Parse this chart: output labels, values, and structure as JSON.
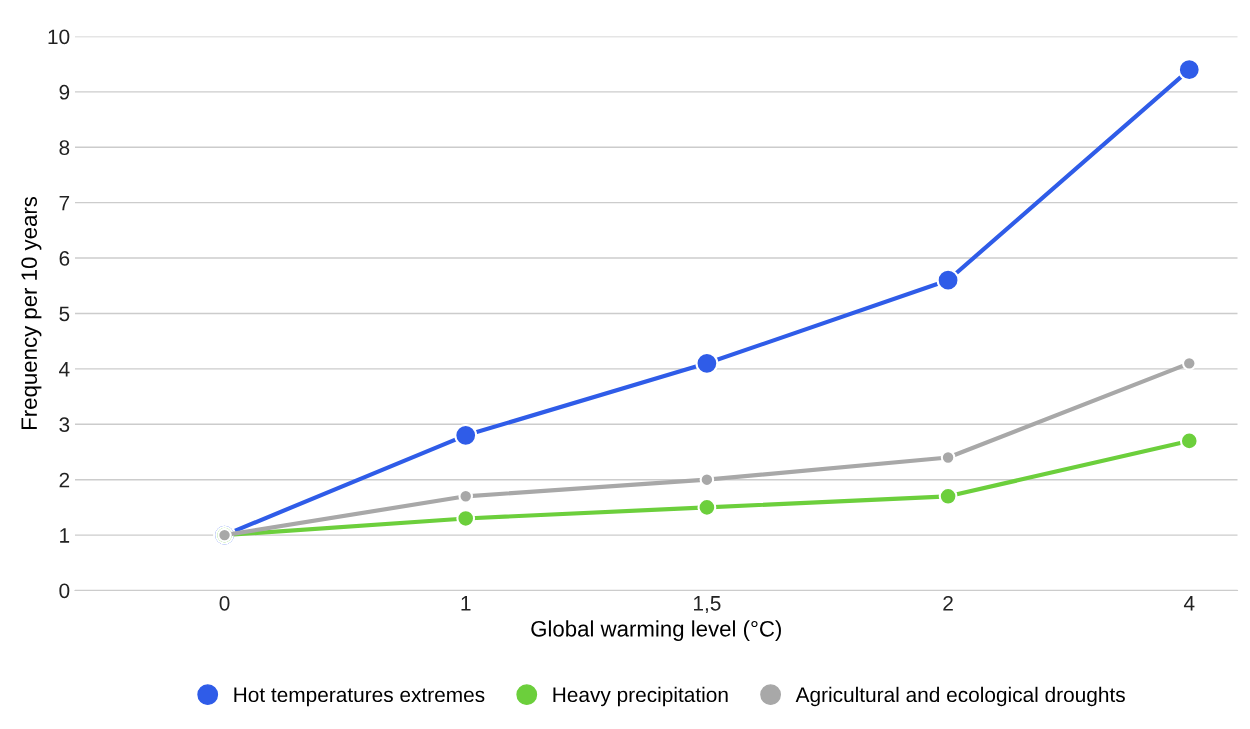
{
  "chart_data": {
    "type": "line",
    "xlabel": "Global warming level (°C)",
    "ylabel": "Frequency per 10 years",
    "categories": [
      "0",
      "1",
      "1,5",
      "2",
      "4"
    ],
    "series": [
      {
        "name": "Hot temperatures extremes",
        "color": "#2f5ce8",
        "values": [
          1,
          2.8,
          4.1,
          5.6,
          9.4
        ]
      },
      {
        "name": "Heavy precipitation",
        "color": "#6ccf3c",
        "values": [
          1,
          1.3,
          1.5,
          1.7,
          2.7
        ]
      },
      {
        "name": "Agricultural and ecological droughts",
        "color": "#a8a8a8",
        "values": [
          1,
          1.7,
          2.0,
          2.4,
          4.1
        ]
      }
    ],
    "ylim": [
      0,
      10
    ],
    "yticks": [
      0,
      1,
      2,
      3,
      4,
      5,
      6,
      7,
      8,
      9,
      10
    ],
    "grid": "y",
    "legend": "bottom",
    "marker": "circle",
    "line_style": "solid"
  }
}
